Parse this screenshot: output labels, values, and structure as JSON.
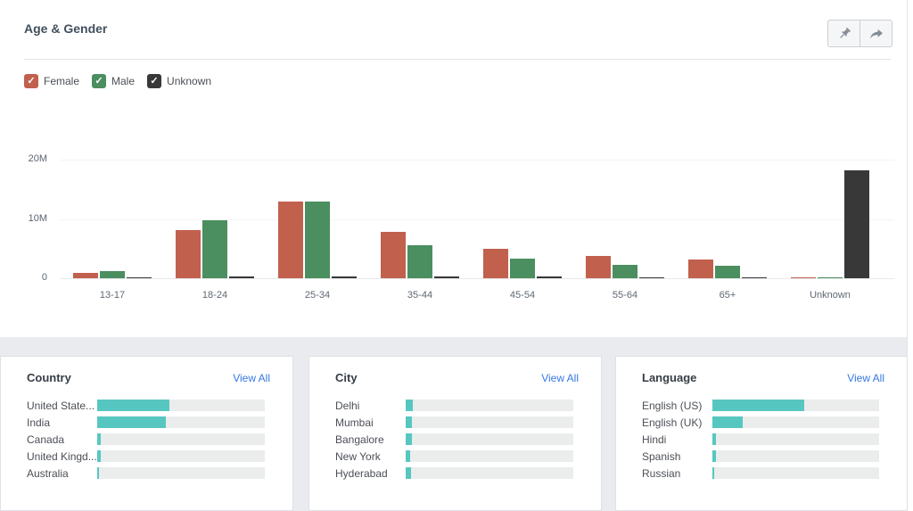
{
  "panel": {
    "title": "Age & Gender"
  },
  "toolbar": {
    "buttons": [
      {
        "name": "pin",
        "icon": "pushpin-icon"
      },
      {
        "name": "share",
        "icon": "share-arrow-icon"
      }
    ]
  },
  "legend": [
    {
      "label": "Female",
      "color": "#c2604e",
      "checked": true
    },
    {
      "label": "Male",
      "color": "#4b8e5f",
      "checked": true
    },
    {
      "label": "Unknown",
      "color": "#383838",
      "checked": true
    }
  ],
  "chart_data": {
    "type": "bar",
    "title": "Age & Gender",
    "unit": "M",
    "categories": [
      "13-17",
      "18-24",
      "25-34",
      "35-44",
      "45-54",
      "55-64",
      "65+",
      "Unknown"
    ],
    "series": [
      {
        "name": "Female",
        "color": "#c2604e",
        "values": [
          0.9,
          8.1,
          13.0,
          7.8,
          4.9,
          3.7,
          3.2,
          0.1
        ]
      },
      {
        "name": "Male",
        "color": "#4b8e5f",
        "values": [
          1.2,
          9.7,
          13.0,
          5.6,
          3.3,
          2.3,
          2.1,
          0.1
        ]
      },
      {
        "name": "Unknown",
        "color": "#383838",
        "values": [
          0.2,
          0.3,
          0.3,
          0.3,
          0.25,
          0.2,
          0.2,
          18.2
        ]
      }
    ],
    "xlabel": "",
    "ylabel": "",
    "ylim": [
      0,
      20
    ],
    "yticks": [
      {
        "value": 0,
        "label": "0"
      },
      {
        "value": 10,
        "label": "10M"
      },
      {
        "value": 20,
        "label": "20M"
      }
    ],
    "grid": true,
    "legend_position": "top-left"
  },
  "cards": [
    {
      "title": "Country",
      "view_all": "View All",
      "bar_color": "#56c7c0",
      "rows": [
        {
          "label": "United State...",
          "percent": 43
        },
        {
          "label": "India",
          "percent": 41
        },
        {
          "label": "Canada",
          "percent": 2
        },
        {
          "label": "United Kingd...",
          "percent": 2
        },
        {
          "label": "Australia",
          "percent": 1
        }
      ]
    },
    {
      "title": "City",
      "view_all": "View All",
      "bar_color": "#56c7c0",
      "rows": [
        {
          "label": "Delhi",
          "percent": 4
        },
        {
          "label": "Mumbai",
          "percent": 3.5
        },
        {
          "label": "Bangalore",
          "percent": 3.5
        },
        {
          "label": "New York",
          "percent": 2.5
        },
        {
          "label": "Hyderabad",
          "percent": 3
        }
      ]
    },
    {
      "title": "Language",
      "view_all": "View All",
      "bar_color": "#56c7c0",
      "rows": [
        {
          "label": "English (US)",
          "percent": 55
        },
        {
          "label": "English (UK)",
          "percent": 18
        },
        {
          "label": "Hindi",
          "percent": 2
        },
        {
          "label": "Spanish",
          "percent": 2
        },
        {
          "label": "Russian",
          "percent": 1
        }
      ]
    }
  ],
  "colors": {
    "female": "#c2604e",
    "male": "#4b8e5f",
    "unknown": "#383838",
    "teal_bar": "#56c7c0",
    "link_blue": "#3578e5",
    "page_band": "#e9ebee",
    "track_gray": "#ebecec"
  }
}
